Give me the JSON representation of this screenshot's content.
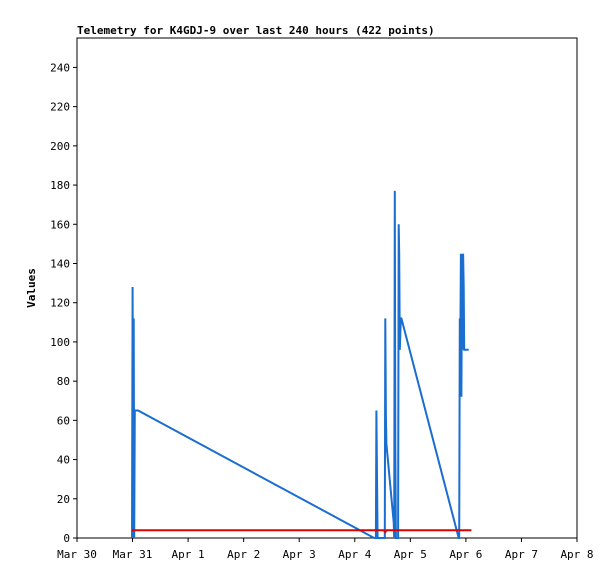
{
  "chart_data": {
    "type": "line",
    "title": "Telemetry for K4GDJ-9 over last 240 hours (422 points)",
    "xlabel": "",
    "ylabel": "Values",
    "xlim": [
      0,
      9
    ],
    "ylim": [
      0,
      255
    ],
    "yticks": [
      0,
      20,
      40,
      60,
      80,
      100,
      120,
      140,
      160,
      180,
      200,
      220,
      240
    ],
    "xtick_labels": [
      "Mar 30",
      "Mar 31",
      "Apr 1",
      "Apr 2",
      "Apr 3",
      "Apr 4",
      "Apr 5",
      "Apr 6",
      "Apr 7",
      "Apr 8"
    ],
    "x_unit": "days since Mar 30 00:00",
    "grid": false,
    "series": [
      {
        "name": "",
        "color": "#1a6ecf",
        "points": [
          [
            0.99,
            0
          ],
          [
            1.0,
            128
          ],
          [
            1.01,
            0
          ],
          [
            1.02,
            112
          ],
          [
            1.03,
            0
          ],
          [
            1.04,
            65
          ],
          [
            1.1,
            65
          ],
          [
            5.35,
            0
          ],
          [
            5.38,
            0
          ],
          [
            5.39,
            65
          ],
          [
            5.4,
            32
          ],
          [
            5.41,
            0
          ],
          [
            5.54,
            0
          ],
          [
            5.55,
            112
          ],
          [
            5.56,
            62
          ],
          [
            5.57,
            48
          ],
          [
            5.7,
            8
          ],
          [
            5.71,
            0
          ],
          [
            5.72,
            177
          ],
          [
            5.73,
            48
          ],
          [
            5.74,
            0
          ],
          [
            5.78,
            0
          ],
          [
            5.79,
            160
          ],
          [
            5.8,
            145
          ],
          [
            5.81,
            96
          ],
          [
            5.82,
            104
          ],
          [
            5.83,
            112
          ],
          [
            5.84,
            112
          ],
          [
            6.87,
            0
          ],
          [
            6.88,
            0
          ],
          [
            6.89,
            112
          ],
          [
            6.9,
            96
          ],
          [
            6.91,
            145
          ],
          [
            6.92,
            72
          ],
          [
            6.93,
            145
          ],
          [
            6.94,
            96
          ],
          [
            6.95,
            145
          ],
          [
            6.96,
            128
          ],
          [
            6.97,
            96
          ],
          [
            7.05,
            96
          ]
        ]
      },
      {
        "name": "",
        "color": "#dd0000",
        "points": [
          [
            0.99,
            4
          ],
          [
            5.52,
            4
          ],
          [
            5.55,
            3
          ],
          [
            5.57,
            4
          ],
          [
            7.1,
            4
          ]
        ]
      }
    ]
  }
}
